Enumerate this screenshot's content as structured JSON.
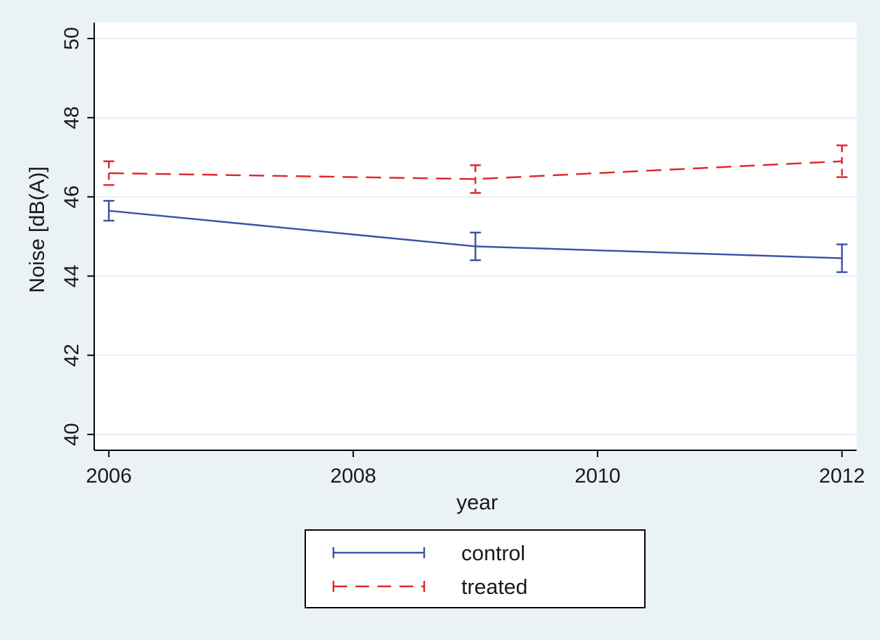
{
  "chart_data": {
    "type": "line",
    "title": "",
    "xlabel": "year",
    "ylabel": "Noise [dB(A)]",
    "xlim": [
      2005.88,
      2012.12
    ],
    "ylim": [
      39.6,
      50.4
    ],
    "xticks": [
      2006,
      2008,
      2010,
      2012
    ],
    "yticks": [
      40,
      42,
      44,
      46,
      48,
      50
    ],
    "grid": "horizontal",
    "legend_position": "bottom",
    "series": [
      {
        "name": "control",
        "color": "#3b53a4",
        "style": "solid",
        "points": [
          {
            "x": 2006,
            "y": 45.65,
            "lo": 45.4,
            "hi": 45.9
          },
          {
            "x": 2009,
            "y": 44.75,
            "lo": 44.4,
            "hi": 45.1
          },
          {
            "x": 2012,
            "y": 44.45,
            "lo": 44.1,
            "hi": 44.8
          }
        ]
      },
      {
        "name": "treated",
        "color": "#e0262b",
        "style": "dashed",
        "points": [
          {
            "x": 2006,
            "y": 46.6,
            "lo": 46.3,
            "hi": 46.9
          },
          {
            "x": 2009,
            "y": 46.45,
            "lo": 46.1,
            "hi": 46.8
          },
          {
            "x": 2012,
            "y": 46.9,
            "lo": 46.5,
            "hi": 47.3
          }
        ]
      }
    ]
  }
}
